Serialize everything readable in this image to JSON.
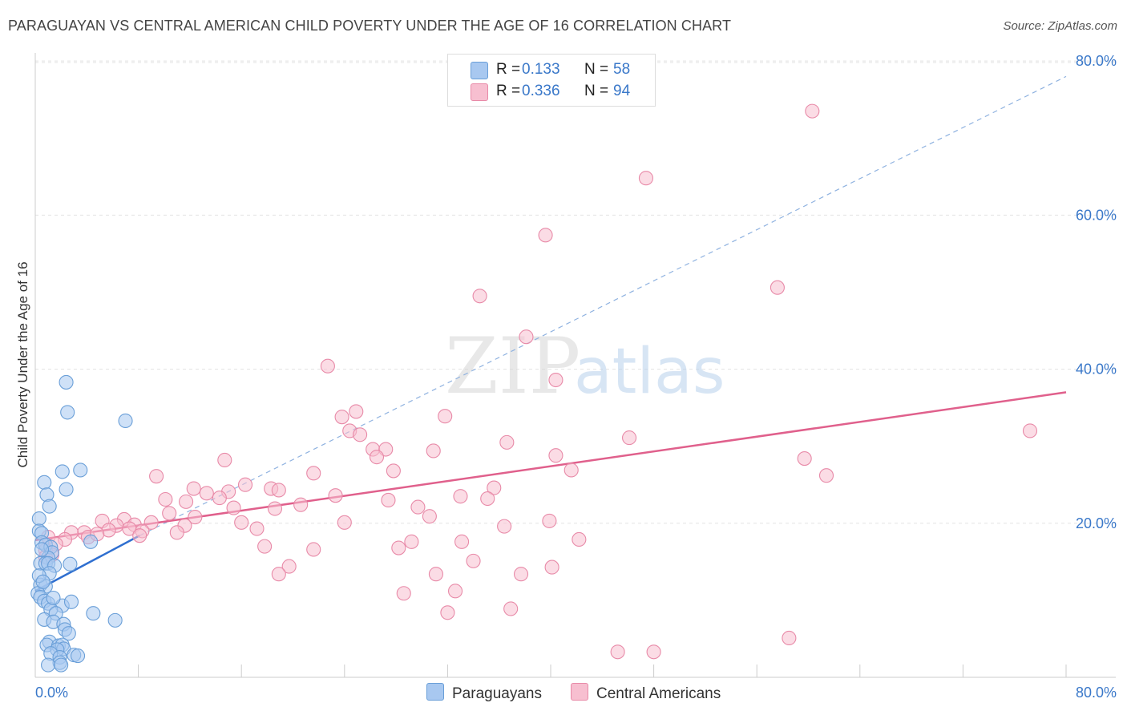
{
  "title": "PARAGUAYAN VS CENTRAL AMERICAN CHILD POVERTY UNDER THE AGE OF 16 CORRELATION CHART",
  "source": "Source: ZipAtlas.com",
  "watermark": {
    "zip": "ZIP",
    "atlas": "atlas"
  },
  "legend": {
    "items": [
      {
        "r_label": "R =",
        "r_value": "0.133",
        "n_label": "N =",
        "n_value": "58",
        "color": "#a8c8f0",
        "stroke": "#6a9fd8"
      },
      {
        "r_label": "R =",
        "r_value": "0.336",
        "n_label": "N =",
        "n_value": "94",
        "color": "#f7bfd0",
        "stroke": "#e88aa8"
      }
    ]
  },
  "bottom_legend": [
    {
      "label": "Paraguayans",
      "color": "#a8c8f0",
      "stroke": "#6a9fd8"
    },
    {
      "label": "Central Americans",
      "color": "#f7bfd0",
      "stroke": "#e88aa8"
    }
  ],
  "chart_data": {
    "type": "scatter",
    "ylabel": "Child Poverty Under the Age of 16",
    "xlabel": "",
    "xlim": [
      0,
      80
    ],
    "ylim": [
      0,
      80
    ],
    "x_tick_labels": [
      "0.0%",
      "80.0%"
    ],
    "y_tick_labels": [
      {
        "value": 20,
        "label": "20.0%"
      },
      {
        "value": 40,
        "label": "40.0%"
      },
      {
        "value": 60,
        "label": "60.0%"
      },
      {
        "value": 80,
        "label": "80.0%"
      }
    ],
    "series": [
      {
        "name": "Paraguayans",
        "color": "#a8c8f0",
        "stroke": "#6a9fd8",
        "trend": {
          "color": "#2f6fd0",
          "x0": 0,
          "y0": 11.2,
          "x1": 8.1,
          "y1": 18.4,
          "dashed_x1": 80,
          "dashed_y1": 78.0
        },
        "points": [
          [
            2.4,
            38.3
          ],
          [
            2.5,
            34.4
          ],
          [
            7.0,
            33.3
          ],
          [
            2.1,
            26.7
          ],
          [
            3.5,
            26.9
          ],
          [
            0.7,
            25.3
          ],
          [
            2.4,
            24.4
          ],
          [
            0.9,
            23.7
          ],
          [
            1.1,
            22.2
          ],
          [
            0.3,
            20.6
          ],
          [
            0.3,
            19.0
          ],
          [
            0.5,
            18.7
          ],
          [
            0.5,
            17.5
          ],
          [
            4.3,
            17.6
          ],
          [
            0.8,
            17.2
          ],
          [
            1.2,
            16.9
          ],
          [
            1.3,
            16.2
          ],
          [
            1.0,
            15.5
          ],
          [
            0.4,
            14.8
          ],
          [
            0.8,
            14.8
          ],
          [
            1.0,
            14.8
          ],
          [
            1.5,
            14.5
          ],
          [
            2.7,
            14.7
          ],
          [
            1.1,
            13.5
          ],
          [
            0.4,
            12.0
          ],
          [
            0.8,
            11.8
          ],
          [
            0.2,
            10.9
          ],
          [
            0.4,
            10.4
          ],
          [
            0.7,
            9.9
          ],
          [
            1.0,
            9.6
          ],
          [
            2.1,
            9.3
          ],
          [
            1.2,
            8.8
          ],
          [
            4.5,
            8.3
          ],
          [
            1.6,
            8.3
          ],
          [
            0.7,
            7.5
          ],
          [
            1.4,
            7.2
          ],
          [
            2.2,
            6.9
          ],
          [
            6.2,
            7.4
          ],
          [
            2.3,
            6.2
          ],
          [
            2.6,
            5.7
          ],
          [
            1.1,
            4.6
          ],
          [
            0.9,
            4.2
          ],
          [
            1.8,
            4.1
          ],
          [
            2.1,
            4.2
          ],
          [
            2.2,
            3.7
          ],
          [
            1.7,
            3.6
          ],
          [
            1.2,
            3.1
          ],
          [
            3.0,
            2.9
          ],
          [
            3.3,
            2.8
          ],
          [
            1.9,
            2.6
          ],
          [
            1.9,
            1.9
          ],
          [
            1.0,
            1.6
          ],
          [
            2.0,
            1.6
          ],
          [
            0.5,
            16.6
          ],
          [
            0.3,
            13.2
          ],
          [
            0.6,
            12.4
          ],
          [
            1.4,
            10.3
          ],
          [
            2.8,
            9.8
          ]
        ]
      },
      {
        "name": "Central Americans",
        "color": "#f7bfd0",
        "stroke": "#e88aa8",
        "trend": {
          "color": "#e0608c",
          "x0": 0,
          "y0": 17.8,
          "x1": 80,
          "y1": 37.0
        },
        "points": [
          [
            60.3,
            73.5
          ],
          [
            47.4,
            64.8
          ],
          [
            39.6,
            57.4
          ],
          [
            57.6,
            50.6
          ],
          [
            34.5,
            49.5
          ],
          [
            38.1,
            44.2
          ],
          [
            22.7,
            40.4
          ],
          [
            40.4,
            38.6
          ],
          [
            24.9,
            34.5
          ],
          [
            23.8,
            33.8
          ],
          [
            31.8,
            33.9
          ],
          [
            24.4,
            32.0
          ],
          [
            46.1,
            31.1
          ],
          [
            36.6,
            30.5
          ],
          [
            25.2,
            31.5
          ],
          [
            26.2,
            29.6
          ],
          [
            27.2,
            29.6
          ],
          [
            30.9,
            29.4
          ],
          [
            26.5,
            28.6
          ],
          [
            40.4,
            28.8
          ],
          [
            77.2,
            32.0
          ],
          [
            59.7,
            28.4
          ],
          [
            14.7,
            28.2
          ],
          [
            21.6,
            26.5
          ],
          [
            27.8,
            26.8
          ],
          [
            41.6,
            26.9
          ],
          [
            61.4,
            26.2
          ],
          [
            9.4,
            26.1
          ],
          [
            16.3,
            25.0
          ],
          [
            12.3,
            24.5
          ],
          [
            18.3,
            24.5
          ],
          [
            35.6,
            24.6
          ],
          [
            13.3,
            23.9
          ],
          [
            15.0,
            24.1
          ],
          [
            18.9,
            24.3
          ],
          [
            10.1,
            23.1
          ],
          [
            14.3,
            23.3
          ],
          [
            23.3,
            23.6
          ],
          [
            33.0,
            23.5
          ],
          [
            27.4,
            23.0
          ],
          [
            35.1,
            23.2
          ],
          [
            11.7,
            22.8
          ],
          [
            20.6,
            22.4
          ],
          [
            15.4,
            22.0
          ],
          [
            18.6,
            21.9
          ],
          [
            29.7,
            22.1
          ],
          [
            10.4,
            21.3
          ],
          [
            12.4,
            20.8
          ],
          [
            16.0,
            20.1
          ],
          [
            24.0,
            20.1
          ],
          [
            30.6,
            20.9
          ],
          [
            6.9,
            20.5
          ],
          [
            9.0,
            20.1
          ],
          [
            5.2,
            20.3
          ],
          [
            6.3,
            19.7
          ],
          [
            7.7,
            19.8
          ],
          [
            11.6,
            19.7
          ],
          [
            17.2,
            19.3
          ],
          [
            36.4,
            19.6
          ],
          [
            39.9,
            20.3
          ],
          [
            7.3,
            19.3
          ],
          [
            5.7,
            19.1
          ],
          [
            8.3,
            19.0
          ],
          [
            3.8,
            18.8
          ],
          [
            11.0,
            18.8
          ],
          [
            8.1,
            18.4
          ],
          [
            2.8,
            18.8
          ],
          [
            4.1,
            18.2
          ],
          [
            4.8,
            18.6
          ],
          [
            1.0,
            18.2
          ],
          [
            2.3,
            17.9
          ],
          [
            1.6,
            17.3
          ],
          [
            0.8,
            16.5
          ],
          [
            1.3,
            15.9
          ],
          [
            42.2,
            17.9
          ],
          [
            29.2,
            17.6
          ],
          [
            33.1,
            17.6
          ],
          [
            17.8,
            17.0
          ],
          [
            21.6,
            16.6
          ],
          [
            28.2,
            16.8
          ],
          [
            34.0,
            15.1
          ],
          [
            19.7,
            14.4
          ],
          [
            18.9,
            13.4
          ],
          [
            40.1,
            14.3
          ],
          [
            31.1,
            13.4
          ],
          [
            37.7,
            13.4
          ],
          [
            32.6,
            11.2
          ],
          [
            28.6,
            10.9
          ],
          [
            36.9,
            8.9
          ],
          [
            32.0,
            8.4
          ],
          [
            58.5,
            5.1
          ],
          [
            45.2,
            3.3
          ],
          [
            48.0,
            3.3
          ],
          [
            0.8,
            15.6
          ]
        ]
      }
    ]
  }
}
